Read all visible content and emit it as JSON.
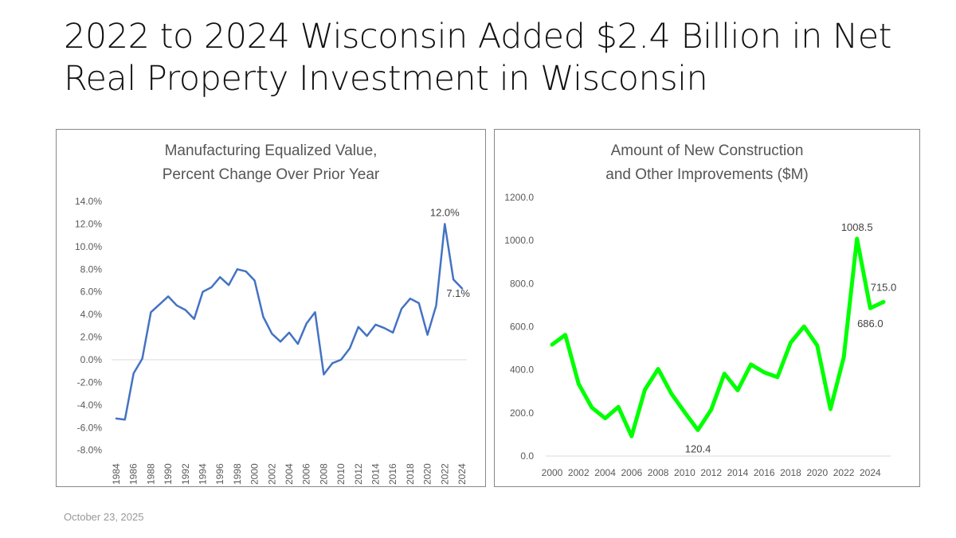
{
  "slide": {
    "title": "2022 to 2024 Wisconsin Added $2.4 Billion in Net Real Property Investment in Wisconsin",
    "date": "October 23, 2025"
  },
  "chart_data": [
    {
      "type": "line",
      "title": "Manufacturing Equalized Value, Percent Change Over Prior Year",
      "title_lines": [
        "Manufacturing Equalized Value,",
        "Percent Change Over Prior Year"
      ],
      "color": "#4472C4",
      "xlabel": "",
      "ylabel": "",
      "ylim": [
        -8,
        14
      ],
      "yticks": [
        "14.0%",
        "12.0%",
        "10.0%",
        "8.0%",
        "6.0%",
        "4.0%",
        "2.0%",
        "0.0%",
        "-2.0%",
        "-4.0%",
        "-6.0%",
        "-8.0%"
      ],
      "ytick_values": [
        14,
        12,
        10,
        8,
        6,
        4,
        2,
        0,
        -2,
        -4,
        -6,
        -8
      ],
      "x": [
        1984,
        1985,
        1986,
        1987,
        1988,
        1989,
        1990,
        1991,
        1992,
        1993,
        1994,
        1995,
        1996,
        1997,
        1998,
        1999,
        2000,
        2001,
        2002,
        2003,
        2004,
        2005,
        2006,
        2007,
        2008,
        2009,
        2010,
        2011,
        2012,
        2013,
        2014,
        2015,
        2016,
        2017,
        2018,
        2019,
        2020,
        2021,
        2022,
        2023,
        2024
      ],
      "values": [
        -5.2,
        -5.3,
        -1.2,
        0.1,
        4.2,
        4.9,
        5.6,
        4.8,
        4.4,
        3.6,
        6.0,
        6.4,
        7.3,
        6.6,
        8.0,
        7.8,
        7.0,
        3.8,
        2.3,
        1.6,
        2.4,
        1.4,
        3.2,
        4.2,
        -1.3,
        -0.3,
        0.0,
        1.0,
        2.9,
        2.1,
        3.1,
        2.8,
        2.4,
        4.5,
        5.4,
        5.0,
        2.2,
        4.8,
        12.0,
        7.1,
        6.3
      ],
      "xtick_labels": [
        "1984",
        "1986",
        "1988",
        "1990",
        "1992",
        "1994",
        "1996",
        "1998",
        "2000",
        "2002",
        "2004",
        "2006",
        "2008",
        "2010",
        "2012",
        "2014",
        "2016",
        "2018",
        "2020",
        "2022",
        "2024"
      ],
      "annotations": [
        {
          "x": 2022,
          "label": "12.0%"
        },
        {
          "x": 2023,
          "label": "7.1%"
        }
      ],
      "grid": false
    },
    {
      "type": "line",
      "title": "Amount of New Construction and Other Improvements ($M)",
      "title_lines": [
        "Amount of New Construction",
        "and Other Improvements ($M)"
      ],
      "color": "#00FF00",
      "xlabel": "",
      "ylabel": "",
      "ylim": [
        0,
        1200
      ],
      "yticks": [
        "1200.0",
        "1000.0",
        "800.0",
        "600.0",
        "400.0",
        "200.0",
        "0.0"
      ],
      "ytick_values": [
        1200,
        1000,
        800,
        600,
        400,
        200,
        0
      ],
      "x": [
        2000,
        2001,
        2002,
        2003,
        2004,
        2005,
        2006,
        2007,
        2008,
        2009,
        2010,
        2011,
        2012,
        2013,
        2014,
        2015,
        2016,
        2017,
        2018,
        2019,
        2020,
        2021,
        2022,
        2023,
        2024,
        2025
      ],
      "values": [
        517,
        562,
        335,
        225,
        175,
        228,
        92,
        308,
        404,
        289,
        203,
        120.4,
        215,
        382,
        305,
        425,
        388,
        366,
        526,
        601,
        513,
        218,
        458,
        1008.5,
        686.0,
        715.0
      ],
      "xtick_labels": [
        "2000",
        "2002",
        "2004",
        "2006",
        "2008",
        "2010",
        "2012",
        "2014",
        "2016",
        "2018",
        "2020",
        "2022",
        "2024"
      ],
      "annotations": [
        {
          "x": 2011,
          "label": "120.4"
        },
        {
          "x": 2023,
          "label": "1008.5"
        },
        {
          "x": 2024,
          "label": "686.0"
        },
        {
          "x": 2025,
          "label": "715.0"
        }
      ],
      "grid": false
    }
  ]
}
